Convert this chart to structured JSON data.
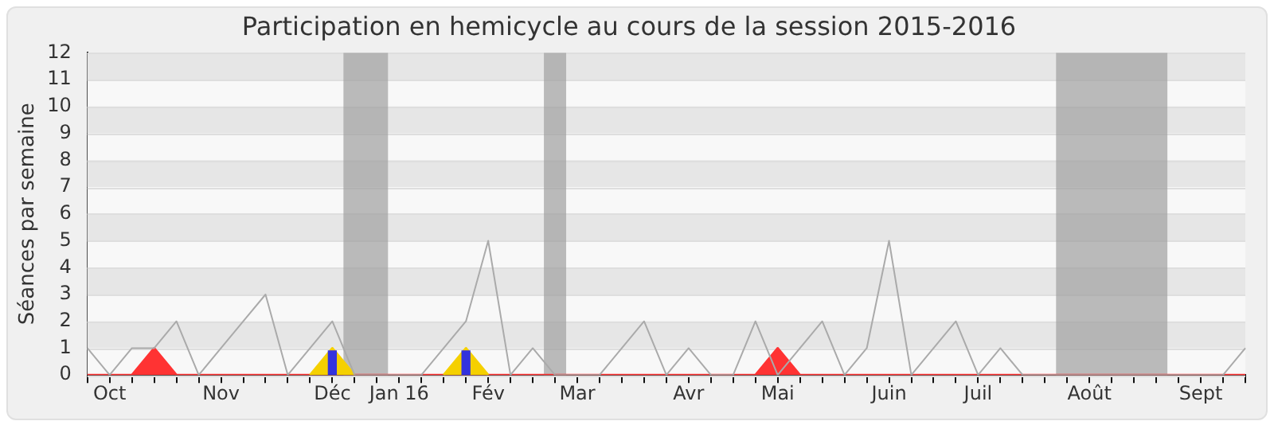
{
  "chart_data": {
    "type": "line",
    "title": "Participation en hemicycle au cours de la session 2015-2016",
    "ylabel": "Séances par semaine",
    "categories": [
      null,
      "Oct",
      null,
      null,
      null,
      null,
      "Nov",
      null,
      null,
      null,
      null,
      "Déc",
      null,
      null,
      "Jan 16",
      null,
      null,
      null,
      "Fév",
      null,
      null,
      null,
      "Mar",
      null,
      null,
      null,
      null,
      "Avr",
      null,
      null,
      null,
      "Mai",
      null,
      null,
      null,
      null,
      "Juin",
      null,
      null,
      null,
      "Juil",
      null,
      null,
      null,
      null,
      "Août",
      null,
      null,
      null,
      null,
      "Sept",
      null,
      null
    ],
    "series": [
      {
        "type": "area",
        "color": "#ff3333",
        "values": [
          0,
          0,
          0,
          1,
          0,
          0,
          0,
          0,
          0,
          0,
          0,
          0,
          0,
          0,
          0,
          0,
          0,
          0,
          0,
          0,
          0,
          0,
          0,
          0,
          0,
          0,
          0,
          0,
          0,
          0,
          0,
          1,
          0,
          0,
          0,
          0,
          0,
          0,
          0,
          0,
          0,
          0,
          0,
          0,
          0,
          0,
          0,
          0,
          0,
          0,
          0,
          0,
          0
        ]
      },
      {
        "type": "area",
        "color": "#f5d000",
        "values": [
          null,
          null,
          null,
          null,
          null,
          null,
          null,
          null,
          null,
          null,
          0,
          1,
          0,
          null,
          null,
          null,
          0,
          1,
          0,
          null,
          null,
          null,
          null,
          null,
          null,
          null,
          null,
          null,
          null,
          null,
          null,
          null,
          null,
          null,
          null,
          null,
          null,
          null,
          null,
          null,
          null,
          null,
          null,
          null,
          null,
          null,
          null,
          null,
          null,
          null,
          null,
          null,
          null
        ]
      },
      {
        "color": "#aaaaaa",
        "values": [
          1,
          0,
          1,
          1,
          2,
          0,
          1,
          2,
          3,
          0,
          1,
          2,
          0,
          0,
          0,
          0,
          1,
          2,
          5,
          0,
          1,
          0,
          0,
          0,
          1,
          2,
          0,
          1,
          0,
          0,
          2,
          0,
          1,
          2,
          0,
          1,
          5,
          0,
          1,
          2,
          0,
          1,
          0,
          0,
          0,
          0,
          0,
          0,
          0,
          0,
          0,
          0,
          1
        ]
      },
      {
        "type": "bar",
        "color": "#3333dd",
        "values": [
          null,
          null,
          null,
          null,
          null,
          null,
          null,
          null,
          null,
          null,
          null,
          0.9,
          null,
          null,
          null,
          null,
          null,
          0.9,
          null,
          null,
          null,
          null,
          null,
          null,
          null,
          null,
          null,
          null,
          null,
          null,
          null,
          null,
          null,
          null,
          null,
          null,
          null,
          null,
          null,
          null,
          null,
          null,
          null,
          null,
          null,
          null,
          null,
          null,
          null,
          null,
          null,
          null,
          null
        ]
      }
    ],
    "ylim": [
      0,
      12
    ],
    "yticks": [
      0,
      1,
      2,
      3,
      4,
      5,
      6,
      7,
      8,
      9,
      10,
      11,
      12
    ],
    "grid": "y",
    "legend": false,
    "marker": "none"
  }
}
